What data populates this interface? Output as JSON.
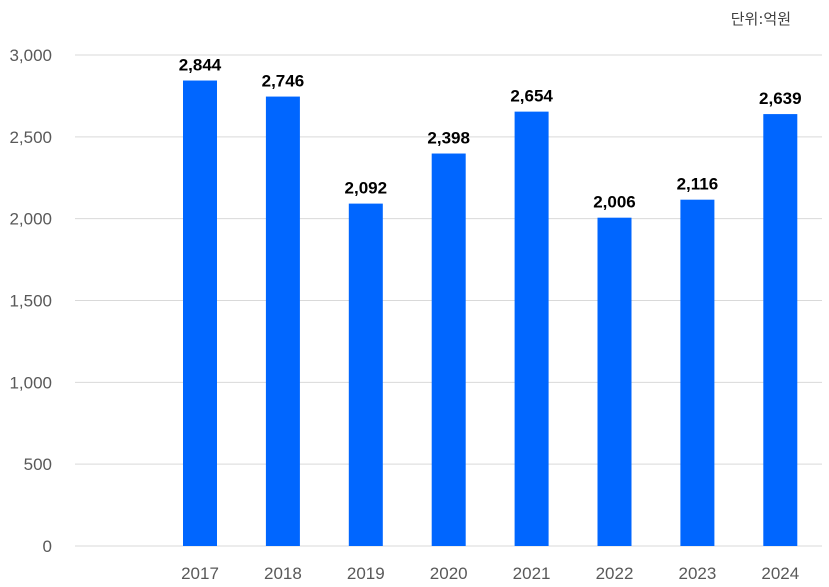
{
  "chart_data": {
    "type": "bar",
    "categories": [
      "2017",
      "2018",
      "2019",
      "2020",
      "2021",
      "2022",
      "2023",
      "2024"
    ],
    "values": [
      2844,
      2746,
      2092,
      2398,
      2654,
      2006,
      2116,
      2639
    ],
    "value_labels": [
      "2,844",
      "2,746",
      "2,092",
      "2,398",
      "2,654",
      "2,006",
      "2,116",
      "2,639"
    ],
    "unit_label": "단위:억원",
    "ylim": [
      0,
      3000
    ],
    "yticks": [
      0,
      500,
      1000,
      1500,
      2000,
      2500,
      3000
    ],
    "ytick_labels": [
      "0",
      "500",
      "1,000",
      "1,500",
      "2,000",
      "2,500",
      "3,000"
    ],
    "grid": true,
    "legend": "none",
    "bar_color": "#0066FF",
    "grid_color": "#D9D9D9"
  }
}
